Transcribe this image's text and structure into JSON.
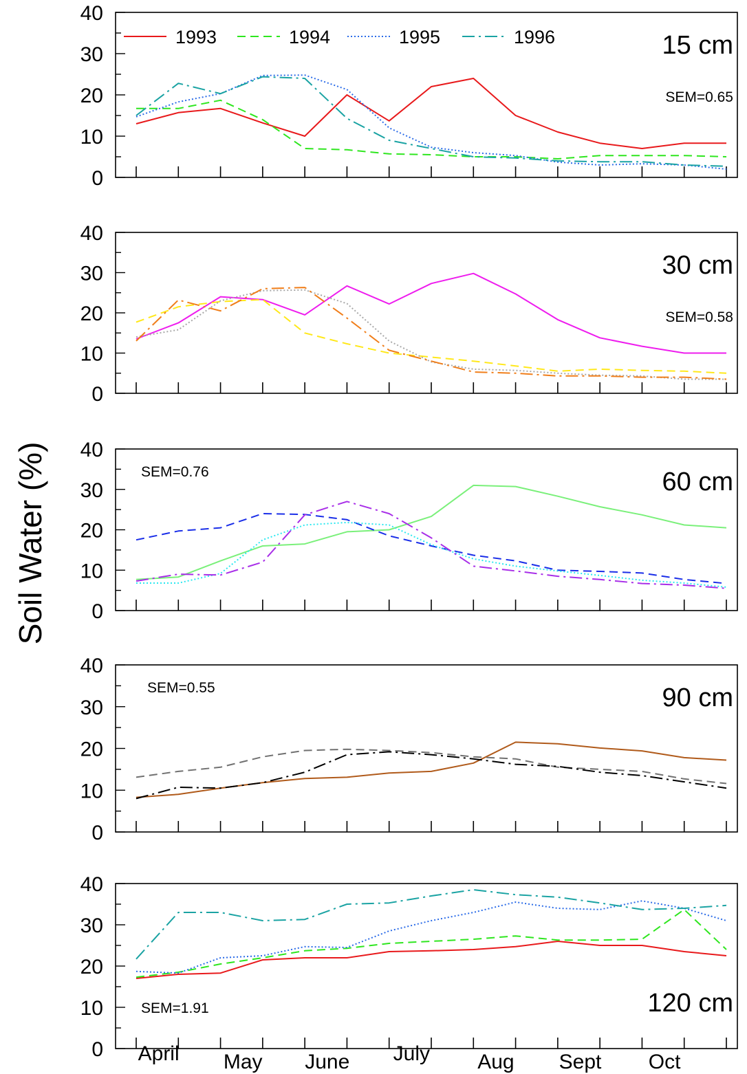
{
  "figure": {
    "ylabel": "Soil Water (%)"
  },
  "chart_data": [
    {
      "type": "line",
      "depth_label": "15 cm",
      "sem_label": "SEM=0.65",
      "sem_pos": "top-right",
      "legend_placement": "top-left",
      "ylim": [
        0,
        40
      ],
      "yticks": [
        "0",
        "10",
        "20",
        "30",
        "40"
      ],
      "x": [
        1,
        2,
        3,
        4,
        5,
        6,
        7,
        8,
        9,
        10,
        11,
        12,
        13,
        14,
        15
      ],
      "series": [
        {
          "name": "1993",
          "color": "#e8191b",
          "dash": "solid",
          "values": [
            13,
            15.7,
            16.7,
            13.2,
            10,
            20,
            13.7,
            22,
            24,
            15,
            11,
            8.3,
            7,
            8.3,
            8.3
          ]
        },
        {
          "name": "1994",
          "color": "#2ee61e",
          "dash": "dashed",
          "values": [
            16.7,
            16.7,
            18.7,
            14,
            7,
            6.7,
            5.7,
            5.5,
            5,
            5,
            4.5,
            5.3,
            5.3,
            5.3,
            5
          ]
        },
        {
          "name": "1995",
          "color": "#2a6be8",
          "dash": "dotted",
          "values": [
            14.7,
            18.3,
            20.3,
            24.7,
            24.8,
            21.3,
            12,
            7.3,
            6,
            5.3,
            3.7,
            3,
            3.3,
            3,
            2
          ]
        },
        {
          "name": "1996",
          "color": "#1aa3a3",
          "dash": "dashdot",
          "values": [
            15,
            22.8,
            20.3,
            24.4,
            24,
            14.3,
            9,
            7,
            5,
            4.7,
            4,
            3.8,
            3.8,
            3,
            2.7
          ]
        }
      ]
    },
    {
      "type": "line",
      "depth_label": "30 cm",
      "sem_label": "SEM=0.58",
      "sem_pos": "top-right",
      "ylim": [
        0,
        40
      ],
      "yticks": [
        "0",
        "10",
        "20",
        "30",
        "40"
      ],
      "x": [
        1,
        2,
        3,
        4,
        5,
        6,
        7,
        8,
        9,
        10,
        11,
        12,
        13,
        14,
        15
      ],
      "series": [
        {
          "color": "#ee1cee",
          "dash": "solid",
          "values": [
            13.5,
            17.5,
            24,
            23.3,
            19.5,
            26.7,
            22.2,
            27.3,
            29.8,
            24.7,
            18.3,
            13.8,
            11.7,
            10,
            10
          ]
        },
        {
          "color": "#ffe81a",
          "dash": "dashed",
          "values": [
            17.7,
            21.5,
            22.8,
            23.3,
            15,
            12.3,
            10,
            9,
            8,
            6.8,
            5.5,
            6,
            5.7,
            5.5,
            5
          ]
        },
        {
          "color": "#a8a8a8",
          "dash": "dotted",
          "values": [
            14,
            15.8,
            23,
            25.5,
            25.7,
            22.3,
            13,
            7.8,
            6,
            5.7,
            5,
            4.5,
            4.3,
            3.5,
            3.5
          ]
        },
        {
          "color": "#f07e1a",
          "dash": "dashdot",
          "values": [
            13,
            23.2,
            20.5,
            26,
            26.3,
            18.7,
            10.7,
            8,
            5.3,
            5,
            4.3,
            4.3,
            4,
            4,
            3.5
          ]
        }
      ]
    },
    {
      "type": "line",
      "depth_label": "60 cm",
      "sem_label": "SEM=0.76",
      "sem_pos": "top-left",
      "ylim": [
        0,
        40
      ],
      "yticks": [
        "0",
        "10",
        "20",
        "30",
        "40"
      ],
      "x": [
        1,
        2,
        3,
        4,
        5,
        6,
        7,
        8,
        9,
        10,
        11,
        12,
        13,
        14,
        15
      ],
      "series": [
        {
          "color": "#7af07a",
          "dash": "solid",
          "values": [
            7.7,
            8.3,
            12.3,
            16,
            16.5,
            19.5,
            20,
            23.3,
            31,
            30.7,
            28.3,
            25.7,
            23.7,
            21.2,
            20.5
          ]
        },
        {
          "color": "#1a2ee8",
          "dash": "dashed",
          "values": [
            17.5,
            19.7,
            20.5,
            24,
            23.8,
            22.5,
            18.5,
            16,
            13.7,
            12.3,
            10,
            9.7,
            9.3,
            7.7,
            6.7
          ]
        },
        {
          "color": "#2ae8f0",
          "dash": "dotted",
          "values": [
            6.8,
            6.8,
            9.2,
            17.5,
            21.2,
            21.8,
            21.2,
            16.3,
            12.8,
            11,
            9.8,
            8.7,
            7.5,
            6.8,
            5.8
          ]
        },
        {
          "color": "#a82ee8",
          "dash": "dashdot",
          "values": [
            7.3,
            9,
            8.8,
            12,
            23.7,
            27,
            24,
            18,
            11,
            9.8,
            8.5,
            7.7,
            6.7,
            6.3,
            5.5
          ]
        }
      ]
    },
    {
      "type": "line",
      "depth_label": "90 cm",
      "sem_label": "SEM=0.55",
      "sem_pos": "top-left",
      "ylim": [
        0,
        40
      ],
      "yticks": [
        "0",
        "10",
        "20",
        "30",
        "40"
      ],
      "x": [
        1,
        2,
        3,
        4,
        5,
        6,
        7,
        8,
        9,
        10,
        11,
        12,
        13,
        14,
        15
      ],
      "series": [
        {
          "color": "#b05a1a",
          "dash": "solid",
          "values": [
            8.3,
            9,
            10.5,
            11.8,
            12.8,
            13.1,
            14.1,
            14.5,
            16.5,
            21.5,
            21.1,
            20.1,
            19.4,
            17.8,
            17.2
          ]
        },
        {
          "color": "#707070",
          "dash": "dashed",
          "values": [
            13.1,
            14.5,
            15.5,
            18,
            19.5,
            19.8,
            19.5,
            19,
            18,
            17.5,
            15.5,
            15,
            14.5,
            12.7,
            11.6
          ]
        },
        {
          "color": "#000000",
          "dash": "dashdot",
          "values": [
            8,
            10.7,
            10.5,
            11.8,
            14.3,
            18.5,
            19.2,
            18.5,
            17.5,
            16.2,
            15.7,
            14.3,
            13.5,
            12,
            10.5
          ]
        }
      ]
    },
    {
      "type": "line",
      "depth_label": "120 cm",
      "sem_label": "SEM=1.91",
      "sem_pos": "bottom-left",
      "ylim": [
        0,
        40
      ],
      "yticks": [
        "0",
        "10",
        "20",
        "30",
        "40"
      ],
      "x": [
        1,
        2,
        3,
        4,
        5,
        6,
        7,
        8,
        9,
        10,
        11,
        12,
        13,
        14,
        15
      ],
      "xticklabels": [
        "April",
        "May",
        "June",
        "July",
        "Aug",
        "Sept",
        "Oct"
      ],
      "series": [
        {
          "color": "#e8191b",
          "dash": "solid",
          "values": [
            17,
            18,
            18.3,
            21.5,
            22,
            22,
            23.5,
            23.7,
            24,
            24.7,
            26,
            25,
            25,
            23.5,
            22.5
          ]
        },
        {
          "color": "#2ee61e",
          "dash": "dashed",
          "values": [
            17.3,
            18.5,
            20.5,
            22,
            23.7,
            24.3,
            25.5,
            26,
            26.5,
            27.3,
            26.3,
            26.3,
            26.5,
            33.7,
            24
          ]
        },
        {
          "color": "#2a6be8",
          "dash": "dotted",
          "values": [
            18.7,
            18.3,
            22,
            22.5,
            24.7,
            24.5,
            28.5,
            31,
            33,
            35.5,
            34,
            33.7,
            35.8,
            34,
            31
          ]
        },
        {
          "color": "#1aa3a3",
          "dash": "dashdot",
          "values": [
            21.7,
            33,
            33,
            31,
            31.3,
            35,
            35.3,
            37,
            38.5,
            37.3,
            36.7,
            35.3,
            33.7,
            34,
            34.7
          ]
        }
      ]
    }
  ]
}
